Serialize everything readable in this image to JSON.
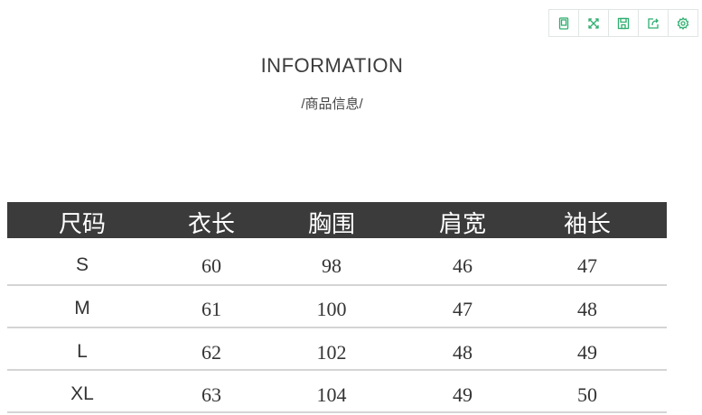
{
  "toolbar": {
    "accent": "#2fae6f",
    "buttons": [
      "tablet-icon",
      "fullscreen-icon",
      "save-icon",
      "share-icon",
      "settings-icon"
    ]
  },
  "title": "INFORMATION",
  "subtitle": "/商品信息/",
  "table": {
    "headers": [
      "尺码",
      "衣长",
      "胸围",
      "肩宽",
      "袖长"
    ],
    "rows": [
      [
        "S",
        "60",
        "98",
        "46",
        "47"
      ],
      [
        "M",
        "61",
        "100",
        "47",
        "48"
      ],
      [
        "L",
        "62",
        "102",
        "48",
        "49"
      ],
      [
        "XL",
        "63",
        "104",
        "49",
        "50"
      ]
    ]
  }
}
